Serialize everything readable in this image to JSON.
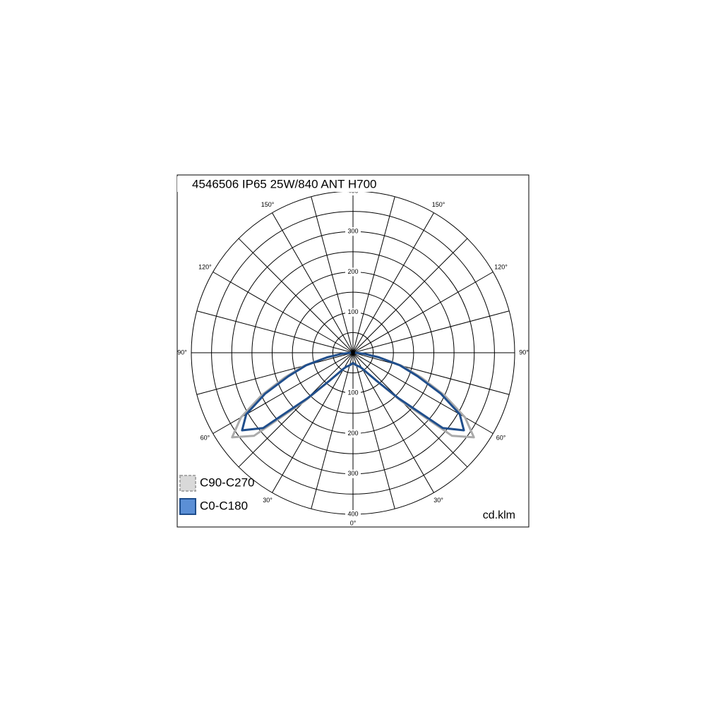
{
  "chart_data": {
    "type": "polar",
    "title": "4546506 IP65 25W/840 ANT H700",
    "unit_label": "cd.klm",
    "x": [
      0,
      5,
      10,
      15,
      20,
      25,
      30,
      35,
      40,
      45,
      50,
      55,
      60,
      65,
      70,
      75,
      80,
      85,
      90
    ],
    "series": [
      {
        "name": "C90-C270",
        "color": "#aaaaaa",
        "fill": "#d9d9d9",
        "values": [
          25,
          27,
          30,
          32,
          35,
          38,
          45,
          60,
          90,
          170,
          320,
          365,
          320,
          250,
          180,
          125,
          65,
          25,
          5
        ]
      },
      {
        "name": "C0-C180",
        "color": "#1f4e8c",
        "fill": "#5b8fd6",
        "values": [
          25,
          27,
          30,
          32,
          35,
          38,
          45,
          60,
          90,
          160,
          290,
          335,
          305,
          240,
          170,
          120,
          65,
          25,
          5
        ]
      }
    ],
    "rlim": [
      0,
      400
    ],
    "rticks": [
      100,
      200,
      300,
      400
    ],
    "angle_ticks": [
      {
        "value": 0,
        "label": "0°"
      },
      {
        "value": 30,
        "label": "30°"
      },
      {
        "value": 60,
        "label": "60°"
      },
      {
        "value": 90,
        "label": "90°"
      },
      {
        "value": 120,
        "label": "120°"
      },
      {
        "value": 150,
        "label": "150°"
      }
    ]
  }
}
